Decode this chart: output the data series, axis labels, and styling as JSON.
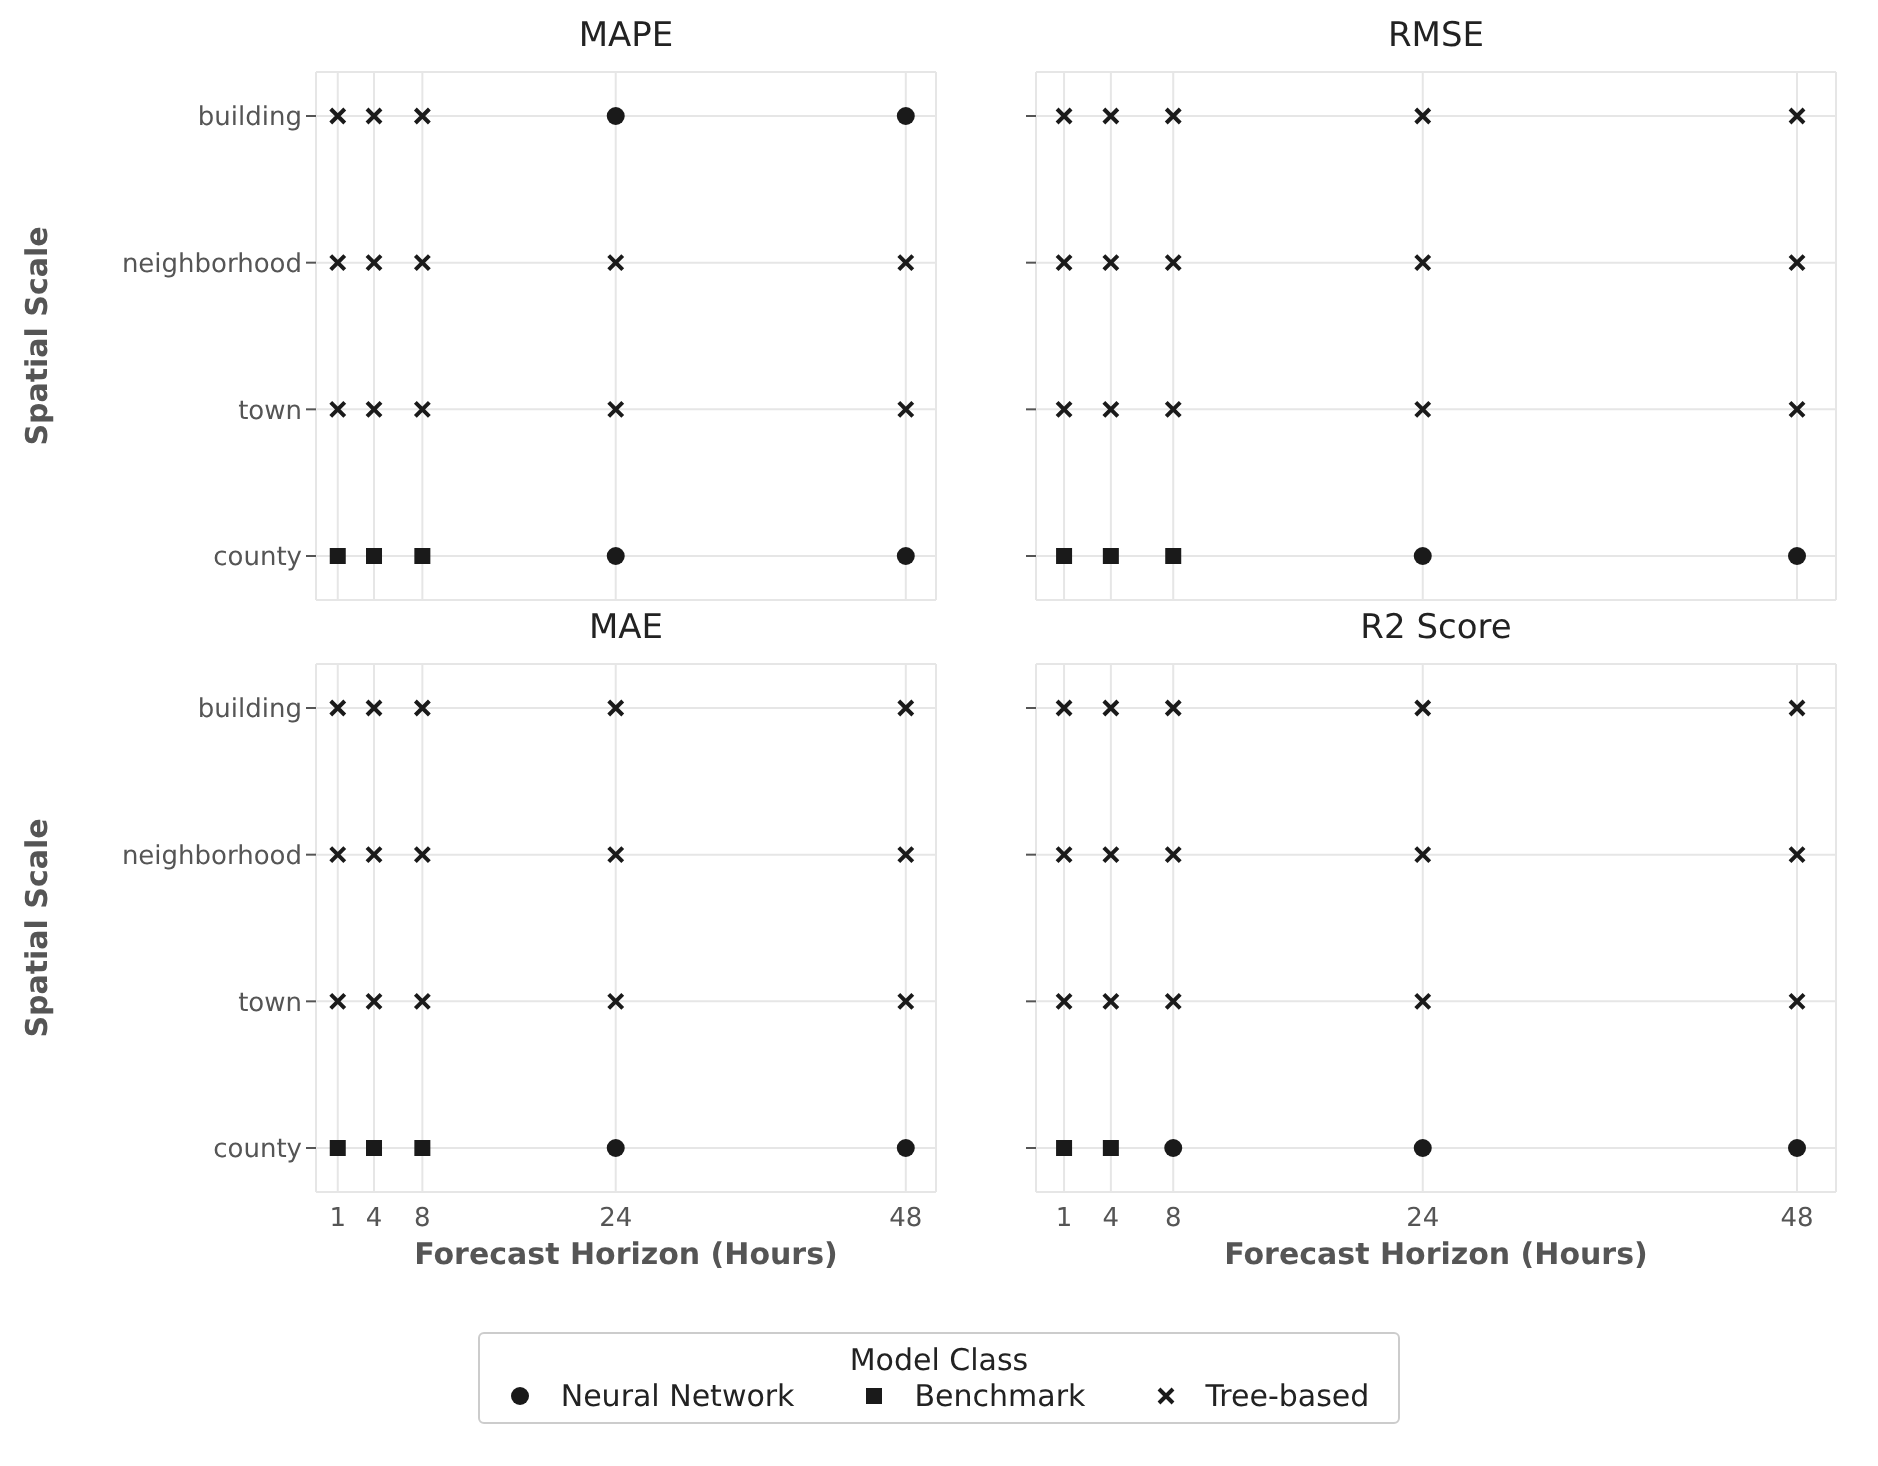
{
  "chart_data": [
    {
      "type": "scatter",
      "title": "MAPE",
      "ylabel": "Spatial Scale",
      "orientation": "horizontal",
      "categories": [
        "building",
        "neighborhood",
        "town",
        "county"
      ],
      "xlim": [
        -0.8,
        50.5
      ],
      "xticks": [
        1,
        4,
        8,
        24,
        48
      ],
      "grid": true,
      "tick_labels": "y",
      "legend": "bottom",
      "legend_title": "Model Class",
      "series": [
        {
          "name": "Neural Network",
          "color": "#1a1a1a",
          "marker": "circle",
          "values": [
            24,
            null,
            null,
            24
          ]
        },
        {
          "color": "#1a1a1a",
          "marker": "circle",
          "values": [
            48,
            null,
            null,
            48
          ]
        },
        {
          "name": "Benchmark",
          "color": "#1a1a1a",
          "marker": "square",
          "values": [
            null,
            null,
            null,
            1
          ]
        },
        {
          "color": "#1a1a1a",
          "marker": "square",
          "values": [
            null,
            null,
            null,
            4
          ]
        },
        {
          "color": "#1a1a1a",
          "marker": "square",
          "values": [
            null,
            null,
            null,
            8
          ]
        },
        {
          "name": "Tree-based",
          "color": "#1a1a1a",
          "marker": "cross",
          "values": [
            1,
            1,
            1,
            null
          ]
        },
        {
          "color": "#1a1a1a",
          "marker": "cross",
          "values": [
            4,
            4,
            4,
            null
          ]
        },
        {
          "color": "#1a1a1a",
          "marker": "cross",
          "values": [
            8,
            8,
            8,
            null
          ]
        },
        {
          "color": "#1a1a1a",
          "marker": "cross",
          "values": [
            null,
            24,
            24,
            null
          ]
        },
        {
          "color": "#1a1a1a",
          "marker": "cross",
          "values": [
            null,
            48,
            48,
            null
          ]
        }
      ]
    },
    {
      "type": "scatter",
      "title": "RMSE",
      "orientation": "horizontal",
      "categories": [
        null,
        null,
        null,
        null
      ],
      "xlim": [
        -0.8,
        50.5
      ],
      "xticks": [
        1,
        4,
        8,
        24,
        48
      ],
      "grid": true,
      "tick_labels": false,
      "series": [
        {
          "color": "#1a1a1a",
          "marker": "circle",
          "values": [
            null,
            null,
            null,
            24
          ]
        },
        {
          "color": "#1a1a1a",
          "marker": "circle",
          "values": [
            null,
            null,
            null,
            48
          ]
        },
        {
          "color": "#1a1a1a",
          "marker": "square",
          "values": [
            null,
            null,
            null,
            1
          ]
        },
        {
          "color": "#1a1a1a",
          "marker": "square",
          "values": [
            null,
            null,
            null,
            4
          ]
        },
        {
          "color": "#1a1a1a",
          "marker": "square",
          "values": [
            null,
            null,
            null,
            8
          ]
        },
        {
          "color": "#1a1a1a",
          "marker": "cross",
          "values": [
            1,
            1,
            1,
            null
          ]
        },
        {
          "color": "#1a1a1a",
          "marker": "cross",
          "values": [
            4,
            4,
            4,
            null
          ]
        },
        {
          "color": "#1a1a1a",
          "marker": "cross",
          "values": [
            8,
            8,
            8,
            null
          ]
        },
        {
          "color": "#1a1a1a",
          "marker": "cross",
          "values": [
            24,
            24,
            24,
            null
          ]
        },
        {
          "color": "#1a1a1a",
          "marker": "cross",
          "values": [
            48,
            48,
            48,
            null
          ]
        }
      ]
    },
    {
      "type": "scatter",
      "title": "MAE",
      "xlabel": "Forecast Horizon (Hours)",
      "ylabel": "Spatial Scale",
      "orientation": "horizontal",
      "categories": [
        "building",
        "neighborhood",
        "town",
        "county"
      ],
      "xlim": [
        -0.8,
        50.5
      ],
      "xticks": [
        1,
        4,
        8,
        24,
        48
      ],
      "grid": true,
      "series": [
        {
          "color": "#1a1a1a",
          "marker": "circle",
          "values": [
            null,
            null,
            null,
            24
          ]
        },
        {
          "color": "#1a1a1a",
          "marker": "circle",
          "values": [
            null,
            null,
            null,
            48
          ]
        },
        {
          "color": "#1a1a1a",
          "marker": "square",
          "values": [
            null,
            null,
            null,
            1
          ]
        },
        {
          "color": "#1a1a1a",
          "marker": "square",
          "values": [
            null,
            null,
            null,
            4
          ]
        },
        {
          "color": "#1a1a1a",
          "marker": "square",
          "values": [
            null,
            null,
            null,
            8
          ]
        },
        {
          "color": "#1a1a1a",
          "marker": "cross",
          "values": [
            1,
            1,
            1,
            null
          ]
        },
        {
          "color": "#1a1a1a",
          "marker": "cross",
          "values": [
            4,
            4,
            4,
            null
          ]
        },
        {
          "color": "#1a1a1a",
          "marker": "cross",
          "values": [
            8,
            8,
            8,
            null
          ]
        },
        {
          "color": "#1a1a1a",
          "marker": "cross",
          "values": [
            24,
            24,
            24,
            null
          ]
        },
        {
          "color": "#1a1a1a",
          "marker": "cross",
          "values": [
            48,
            48,
            48,
            null
          ]
        }
      ]
    },
    {
      "type": "scatter",
      "title": "R2 Score",
      "xlabel": "Forecast Horizon (Hours)",
      "orientation": "horizontal",
      "categories": [
        null,
        null,
        null,
        null
      ],
      "xlim": [
        -0.8,
        50.5
      ],
      "xticks": [
        1,
        4,
        8,
        24,
        48
      ],
      "grid": true,
      "tick_labels": "x",
      "series": [
        {
          "color": "#1a1a1a",
          "marker": "circle",
          "values": [
            null,
            null,
            null,
            8
          ]
        },
        {
          "color": "#1a1a1a",
          "marker": "circle",
          "values": [
            null,
            null,
            null,
            24
          ]
        },
        {
          "color": "#1a1a1a",
          "marker": "circle",
          "values": [
            null,
            null,
            null,
            48
          ]
        },
        {
          "color": "#1a1a1a",
          "marker": "square",
          "values": [
            null,
            null,
            null,
            1
          ]
        },
        {
          "color": "#1a1a1a",
          "marker": "square",
          "values": [
            null,
            null,
            null,
            4
          ]
        },
        {
          "color": "#1a1a1a",
          "marker": "cross",
          "values": [
            1,
            1,
            1,
            null
          ]
        },
        {
          "color": "#1a1a1a",
          "marker": "cross",
          "values": [
            4,
            4,
            4,
            null
          ]
        },
        {
          "color": "#1a1a1a",
          "marker": "cross",
          "values": [
            8,
            8,
            8,
            null
          ]
        },
        {
          "color": "#1a1a1a",
          "marker": "cross",
          "values": [
            24,
            24,
            24,
            null
          ]
        },
        {
          "color": "#1a1a1a",
          "marker": "cross",
          "values": [
            48,
            48,
            48,
            null
          ]
        }
      ]
    }
  ]
}
